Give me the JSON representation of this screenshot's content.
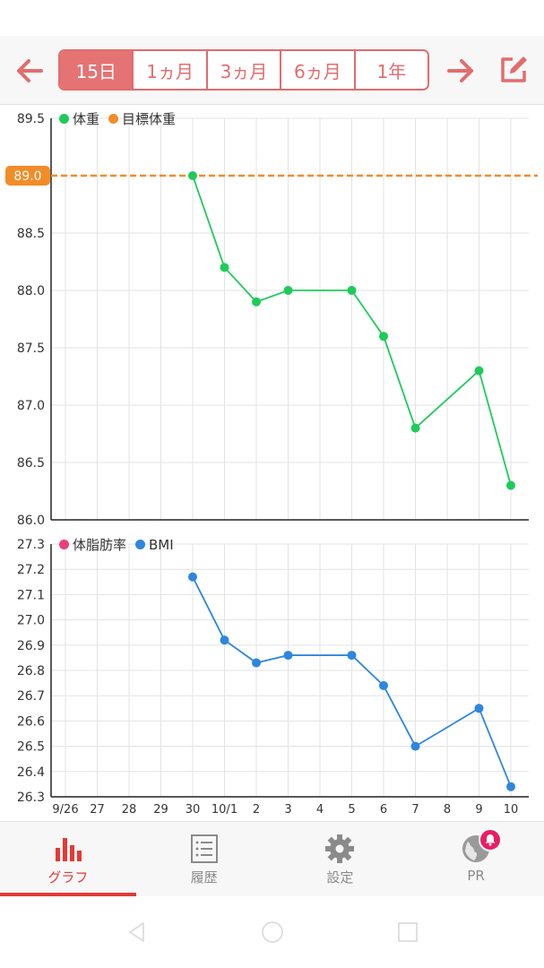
{
  "range_tabs": [
    "15日",
    "1ヵ月",
    "3ヵ月",
    "6ヵ月",
    "1年"
  ],
  "active_range_index": 0,
  "weight_chart": {
    "legend": [
      {
        "label": "体重",
        "color": "#1ecb5a"
      },
      {
        "label": "目標体重",
        "color": "#f28c28"
      }
    ],
    "goal_label": "89.0",
    "y_tick_labels": [
      "89.5",
      "89.0",
      "88.5",
      "88.0",
      "87.5",
      "87.0",
      "86.5",
      "86.0"
    ]
  },
  "body_chart": {
    "legend": [
      {
        "label": "体脂肪率",
        "color": "#ec407a"
      },
      {
        "label": "BMI",
        "color": "#2e86de"
      }
    ],
    "y_tick_labels": [
      "27.3",
      "27.2",
      "27.1",
      "27.0",
      "26.9",
      "26.8",
      "26.7",
      "26.6",
      "26.5",
      "26.4",
      "26.3"
    ],
    "x_tick_labels": [
      "9/26",
      "27",
      "28",
      "29",
      "30",
      "10/1",
      "2",
      "3",
      "4",
      "5",
      "6",
      "7",
      "8",
      "9",
      "10"
    ]
  },
  "chart_data": [
    {
      "type": "line",
      "x": [
        "9/26",
        "27",
        "28",
        "29",
        "30",
        "10/1",
        "2",
        "3",
        "4",
        "5",
        "6",
        "7",
        "8",
        "9",
        "10"
      ],
      "ylim": [
        86.0,
        89.5
      ],
      "goal": 89.0,
      "grid": true,
      "legend_position": "top-left",
      "series": [
        {
          "name": "体重",
          "color": "#1ecb5a",
          "values": [
            null,
            null,
            null,
            null,
            89.0,
            88.2,
            87.9,
            88.0,
            null,
            88.0,
            87.6,
            86.8,
            null,
            87.3,
            86.3
          ]
        }
      ]
    },
    {
      "type": "line",
      "x": [
        "9/26",
        "27",
        "28",
        "29",
        "30",
        "10/1",
        "2",
        "3",
        "4",
        "5",
        "6",
        "7",
        "8",
        "9",
        "10"
      ],
      "ylim": [
        26.3,
        27.3
      ],
      "grid": true,
      "legend_position": "top-left",
      "series": [
        {
          "name": "体脂肪率",
          "color": "#ec407a",
          "values": [
            null,
            null,
            null,
            null,
            null,
            null,
            null,
            null,
            null,
            null,
            null,
            null,
            null,
            null,
            null
          ]
        },
        {
          "name": "BMI",
          "color": "#2e86de",
          "values": [
            null,
            null,
            null,
            null,
            27.17,
            26.92,
            26.83,
            26.86,
            null,
            26.86,
            26.74,
            26.5,
            null,
            26.65,
            26.34
          ]
        }
      ]
    }
  ],
  "bottom_nav": [
    {
      "label": "グラフ",
      "icon": "bar-chart-icon",
      "active": true
    },
    {
      "label": "履歴",
      "icon": "history-list-icon",
      "active": false
    },
    {
      "label": "設定",
      "icon": "gear-icon",
      "active": false
    },
    {
      "label": "PR",
      "icon": "globe-icon",
      "active": false,
      "badge": "bell-icon"
    }
  ],
  "colors": {
    "accent": "#e57373",
    "accent_dark": "#e53935",
    "weight_line": "#1ecb5a",
    "goal_line": "#f28c28",
    "bmi_line": "#2e86de"
  }
}
